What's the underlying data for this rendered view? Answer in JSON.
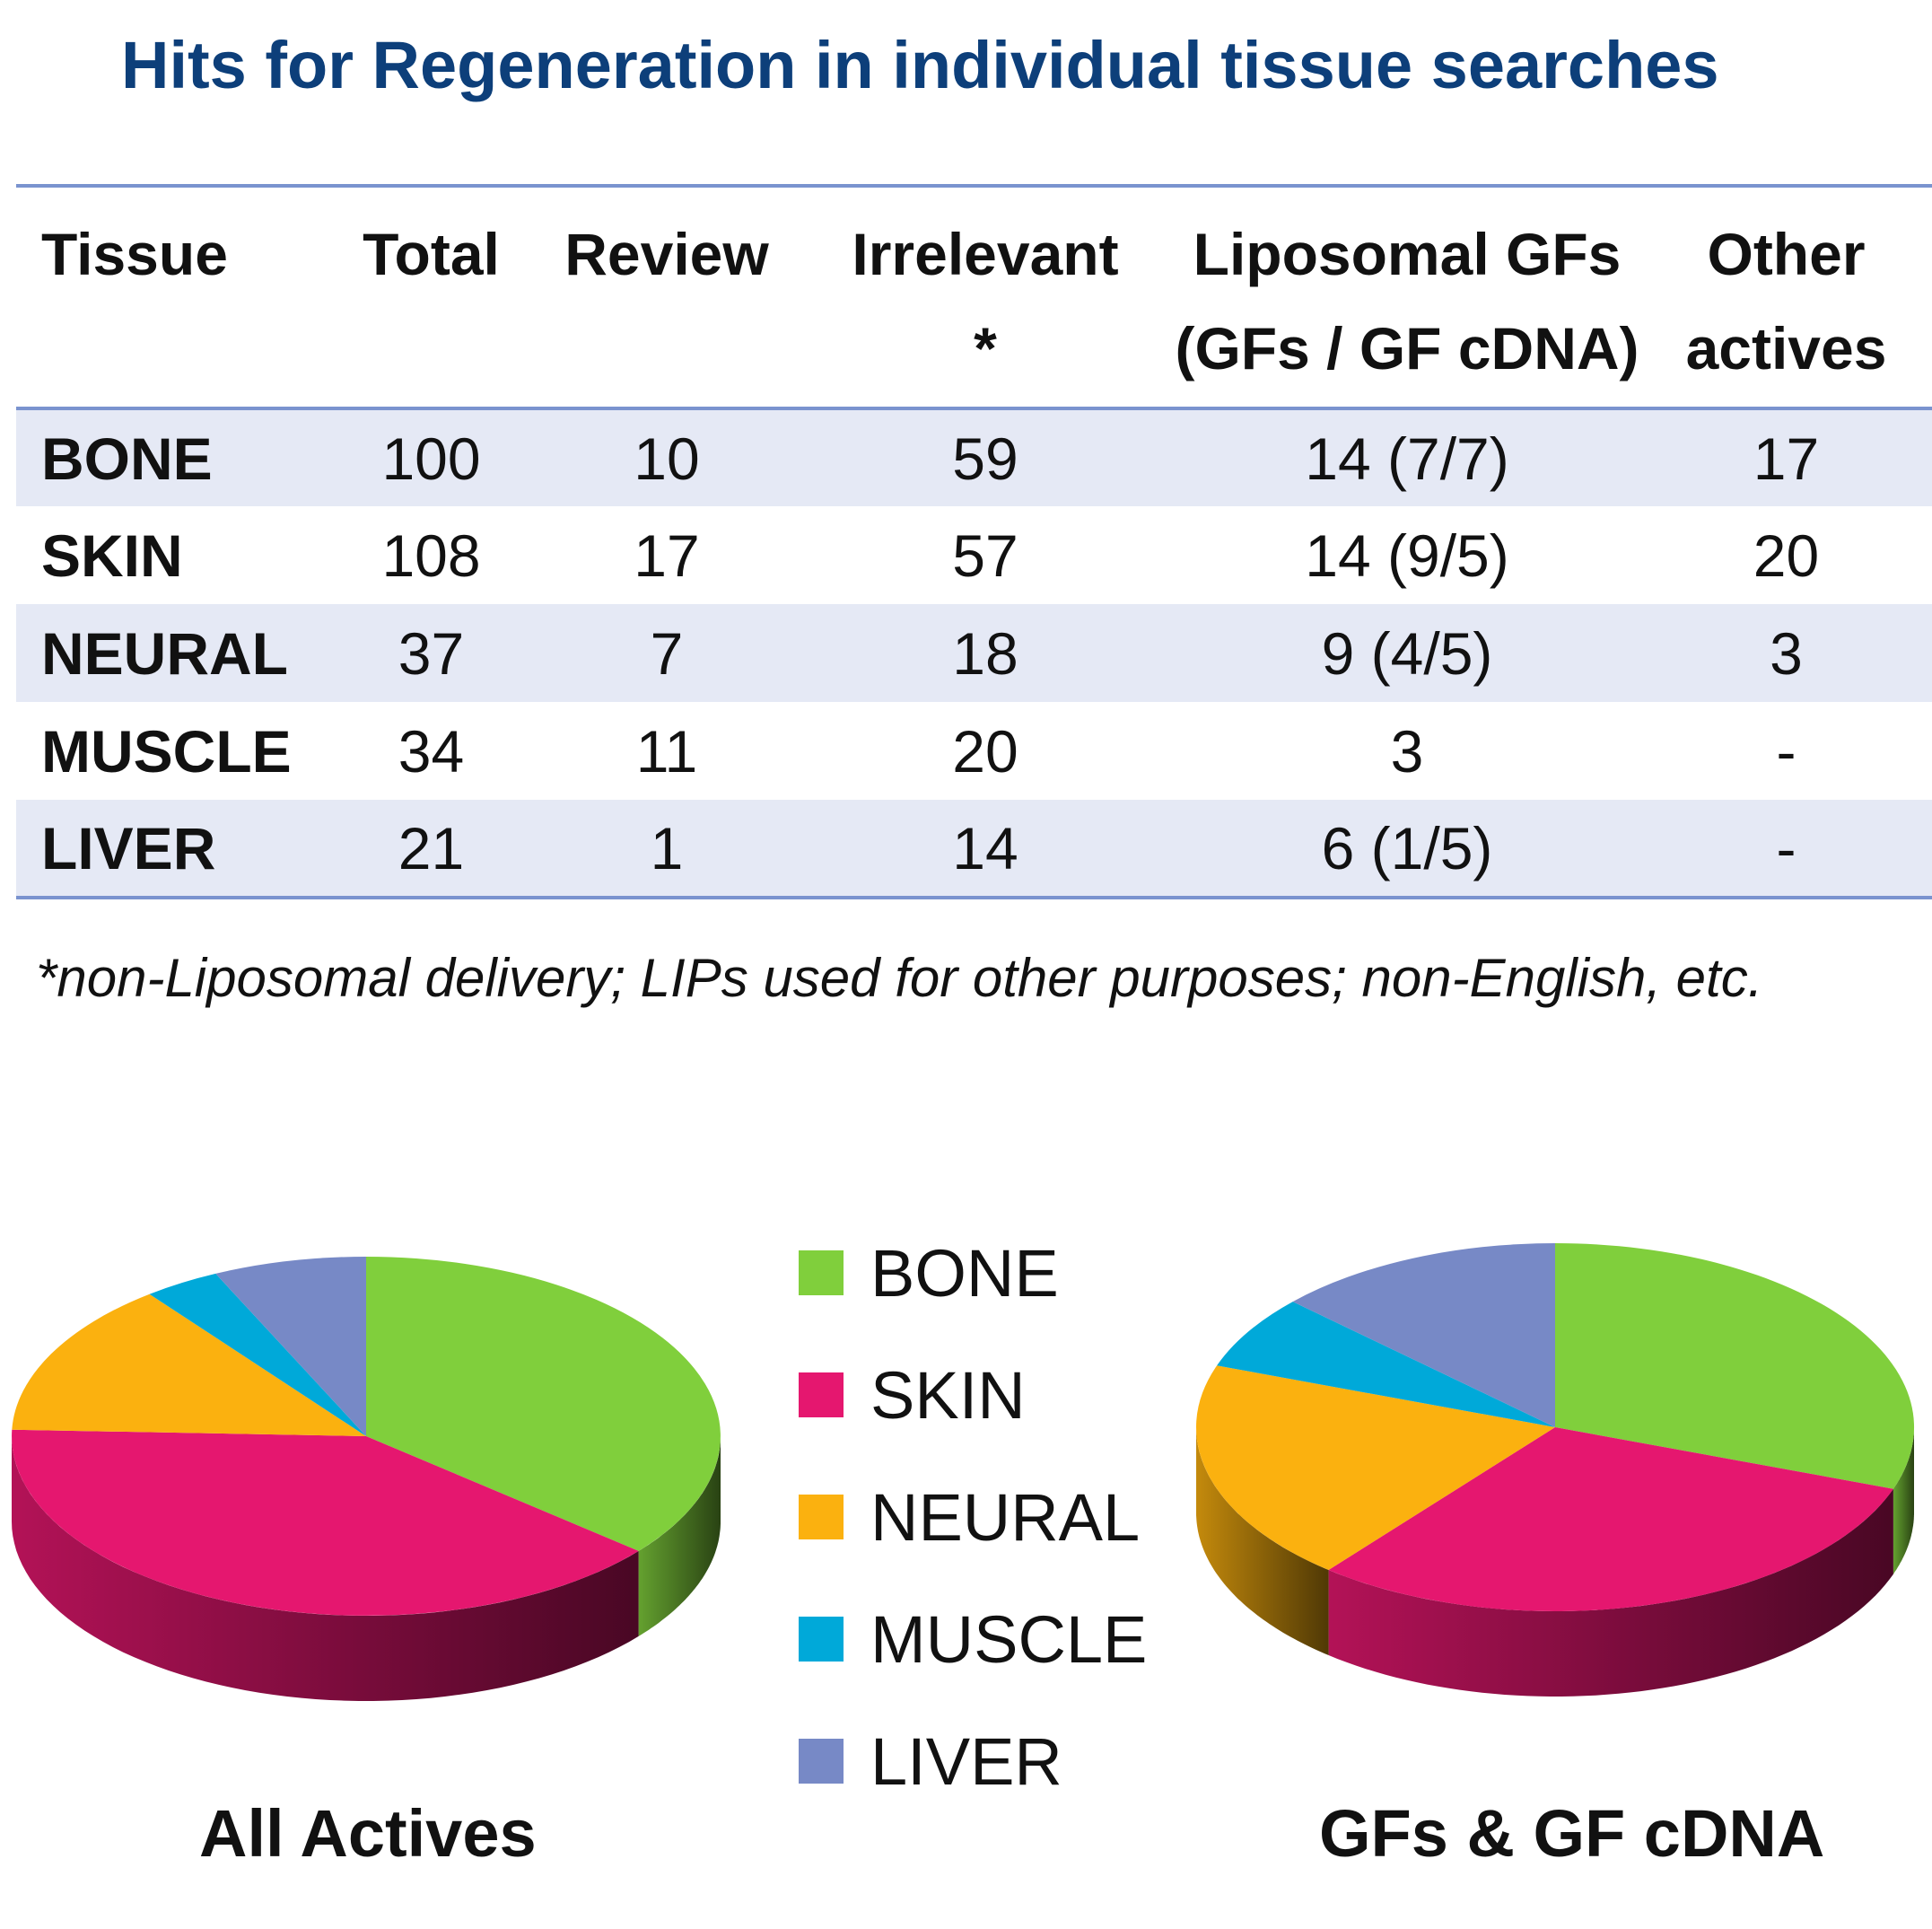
{
  "title": "Hits for Regeneration in individual tissue searches",
  "table": {
    "headers": [
      [
        "Tissue",
        ""
      ],
      [
        "Total",
        ""
      ],
      [
        "Review",
        ""
      ],
      [
        "Irrelevant",
        "*"
      ],
      [
        "Liposomal GFs",
        "(GFs / GF cDNA)"
      ],
      [
        "Other",
        "actives"
      ]
    ],
    "rows": [
      [
        "BONE",
        "100",
        "10",
        "59",
        "14 (7/7)",
        "17"
      ],
      [
        "SKIN",
        "108",
        "17",
        "57",
        "14 (9/5)",
        "20"
      ],
      [
        "NEURAL",
        "37",
        "7",
        "18",
        "9 (4/5)",
        "3"
      ],
      [
        "MUSCLE",
        "34",
        "11",
        "20",
        "3",
        "-"
      ],
      [
        "LIVER",
        "21",
        "1",
        "14",
        "6 (1/5)",
        "-"
      ]
    ]
  },
  "footnote": "*non-Liposomal delivery; LIPs used for other purposes; non-English, etc.",
  "chart_data": [
    {
      "type": "pie",
      "title": "All Actives",
      "categories": [
        "BONE",
        "SKIN",
        "NEURAL",
        "MUSCLE",
        "LIVER"
      ],
      "values": [
        31,
        34,
        12,
        3,
        6
      ],
      "legend": "center"
    },
    {
      "type": "pie",
      "title": "GFs & GF cDNA",
      "categories": [
        "BONE",
        "SKIN",
        "NEURAL",
        "MUSCLE",
        "LIVER"
      ],
      "values": [
        14,
        14,
        9,
        3,
        6
      ],
      "legend": "center"
    }
  ],
  "legend": {
    "items": [
      {
        "label": "BONE",
        "color": "#80cf3c"
      },
      {
        "label": "SKIN",
        "color": "#e5176f"
      },
      {
        "label": "NEURAL",
        "color": "#fbb10f"
      },
      {
        "label": "MUSCLE",
        "color": "#00a9d9"
      },
      {
        "label": "LIVER",
        "color": "#7789c6"
      }
    ]
  }
}
